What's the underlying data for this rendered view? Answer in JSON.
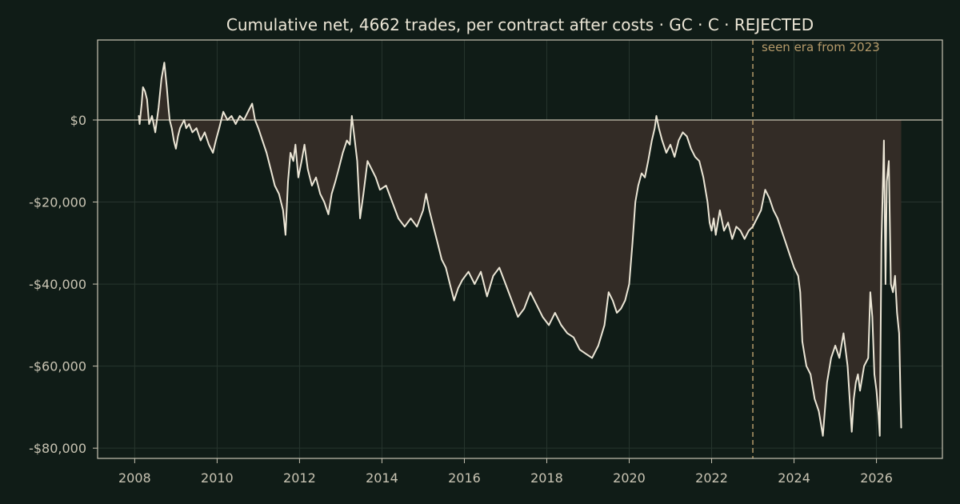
{
  "chart_data": {
    "type": "line",
    "title": "Cumulative net, 4662 trades, per contract after costs  ·  GC · C · REJECTED",
    "xlabel": "",
    "ylabel": "",
    "xlim": [
      2007.1,
      2027.6
    ],
    "ylim": [
      -82500,
      19500
    ],
    "x_ticks": [
      2008,
      2010,
      2012,
      2014,
      2016,
      2018,
      2020,
      2022,
      2024,
      2026
    ],
    "x_tick_labels": [
      "2008",
      "2010",
      "2012",
      "2014",
      "2016",
      "2018",
      "2020",
      "2022",
      "2024",
      "2026"
    ],
    "y_ticks": [
      0,
      -20000,
      -40000,
      -60000,
      -80000
    ],
    "y_tick_labels": [
      "$0",
      "-$20,000",
      "-$40,000",
      "-$60,000",
      "-$80,000"
    ],
    "grid": true,
    "zero_line": 0,
    "underwater_fill": true,
    "annotation": {
      "x": 2023.0,
      "label": "seen era from 2023"
    },
    "colors": {
      "background": "#101c17",
      "line": "#ece6d6",
      "underwater": "#332c26",
      "grid": "#27352e",
      "axis": "#c9c4b3",
      "annotation": "#b59a6a"
    },
    "series": [
      {
        "x": [
          2008.1,
          2008.12,
          2008.17,
          2008.2,
          2008.25,
          2008.3,
          2008.35,
          2008.42,
          2008.5,
          2008.58,
          2008.65,
          2008.72,
          2008.78,
          2008.82,
          2008.85,
          2008.9,
          2008.95,
          2009.0,
          2009.05,
          2009.1,
          2009.15,
          2009.2,
          2009.25,
          2009.32,
          2009.4,
          2009.5,
          2009.6,
          2009.7,
          2009.8,
          2009.9,
          2009.97,
          2010.05,
          2010.15,
          2010.25,
          2010.35,
          2010.45,
          2010.55,
          2010.65,
          2010.75,
          2010.85,
          2010.92,
          2011.0,
          2011.1,
          2011.2,
          2011.3,
          2011.4,
          2011.5,
          2011.6,
          2011.66,
          2011.72,
          2011.78,
          2011.85,
          2011.9,
          2011.97,
          2012.05,
          2012.12,
          2012.2,
          2012.3,
          2012.4,
          2012.5,
          2012.6,
          2012.7,
          2012.78,
          2012.87,
          2012.95,
          2013.05,
          2013.15,
          2013.22,
          2013.27,
          2013.33,
          2013.4,
          2013.47,
          2013.55,
          2013.65,
          2013.75,
          2013.85,
          2013.95,
          2014.1,
          2014.25,
          2014.4,
          2014.55,
          2014.7,
          2014.85,
          2015.0,
          2015.07,
          2015.15,
          2015.25,
          2015.35,
          2015.45,
          2015.55,
          2015.65,
          2015.75,
          2015.85,
          2015.95,
          2016.1,
          2016.25,
          2016.4,
          2016.55,
          2016.7,
          2016.85,
          2017.0,
          2017.15,
          2017.3,
          2017.45,
          2017.6,
          2017.75,
          2017.9,
          2018.05,
          2018.2,
          2018.35,
          2018.5,
          2018.65,
          2018.8,
          2018.95,
          2019.1,
          2019.25,
          2019.4,
          2019.5,
          2019.6,
          2019.7,
          2019.8,
          2019.9,
          2020.0,
          2020.08,
          2020.15,
          2020.22,
          2020.3,
          2020.38,
          2020.46,
          2020.55,
          2020.62,
          2020.66,
          2020.72,
          2020.8,
          2020.9,
          2021.0,
          2021.1,
          2021.2,
          2021.3,
          2021.4,
          2021.5,
          2021.6,
          2021.7,
          2021.8,
          2021.9,
          2021.95,
          2022.0,
          2022.05,
          2022.1,
          2022.2,
          2022.3,
          2022.4,
          2022.5,
          2022.6,
          2022.7,
          2022.8,
          2022.9,
          2023.0,
          2023.1,
          2023.2,
          2023.3,
          2023.4,
          2023.5,
          2023.6,
          2023.7,
          2023.8,
          2023.9,
          2024.0,
          2024.1,
          2024.15,
          2024.2,
          2024.25,
          2024.3,
          2024.4,
          2024.5,
          2024.6,
          2024.7,
          2024.8,
          2024.9,
          2025.0,
          2025.1,
          2025.2,
          2025.3,
          2025.35,
          2025.4,
          2025.45,
          2025.5,
          2025.55,
          2025.6,
          2025.7,
          2025.8,
          2025.85,
          2025.9,
          2025.95,
          2026.0,
          2026.05,
          2026.08,
          2026.12,
          2026.15,
          2026.18,
          2026.22,
          2026.25,
          2026.3,
          2026.35,
          2026.4,
          2026.45,
          2026.5,
          2026.55,
          2026.6
        ],
        "y": [
          1000,
          -1000,
          4000,
          8000,
          7000,
          5000,
          -1000,
          1000,
          -3000,
          3000,
          10000,
          14000,
          8000,
          3000,
          0,
          -2000,
          -5000,
          -7000,
          -4000,
          -2000,
          -1000,
          0,
          -2000,
          -1000,
          -3000,
          -2000,
          -5000,
          -3000,
          -6000,
          -8000,
          -5000,
          -2000,
          2000,
          0,
          1000,
          -1000,
          1000,
          0,
          2000,
          4000,
          0,
          -2000,
          -5000,
          -8000,
          -12000,
          -16000,
          -18000,
          -22000,
          -28000,
          -15000,
          -8000,
          -10000,
          -6000,
          -14000,
          -10000,
          -6000,
          -12000,
          -16000,
          -14000,
          -18000,
          -20000,
          -23000,
          -18000,
          -15000,
          -12000,
          -8000,
          -5000,
          -6000,
          1000,
          -4000,
          -10000,
          -24000,
          -18000,
          -10000,
          -12000,
          -14000,
          -17000,
          -16000,
          -20000,
          -24000,
          -26000,
          -24000,
          -26000,
          -22000,
          -18000,
          -22000,
          -26000,
          -30000,
          -34000,
          -36000,
          -40000,
          -44000,
          -41000,
          -39000,
          -37000,
          -40000,
          -37000,
          -43000,
          -38000,
          -36000,
          -40000,
          -44000,
          -48000,
          -46000,
          -42000,
          -45000,
          -48000,
          -50000,
          -47000,
          -50000,
          -52000,
          -53000,
          -56000,
          -57000,
          -58000,
          -55000,
          -50000,
          -42000,
          -44000,
          -47000,
          -46000,
          -44000,
          -40000,
          -30000,
          -20000,
          -16000,
          -13000,
          -14000,
          -10000,
          -5000,
          -2000,
          1000,
          -2000,
          -5000,
          -8000,
          -6000,
          -9000,
          -5000,
          -3000,
          -4000,
          -7000,
          -9000,
          -10000,
          -14000,
          -20000,
          -25000,
          -27000,
          -24000,
          -28000,
          -22000,
          -27000,
          -25000,
          -29000,
          -26000,
          -27000,
          -29000,
          -27000,
          -26000,
          -24000,
          -22000,
          -17000,
          -19000,
          -22000,
          -24000,
          -27000,
          -30000,
          -33000,
          -36000,
          -38000,
          -42000,
          -54000,
          -57000,
          -60000,
          -62000,
          -68000,
          -71000,
          -77000,
          -64000,
          -58000,
          -55000,
          -58000,
          -52000,
          -60000,
          -68000,
          -76000,
          -68000,
          -64000,
          -62000,
          -66000,
          -60000,
          -58000,
          -42000,
          -48000,
          -62000,
          -66000,
          -72000,
          -77000,
          -30000,
          -18000,
          -5000,
          -40000,
          -15000,
          -10000,
          -40000,
          -42000,
          -38000,
          -47000,
          -52000,
          -75000
        ]
      }
    ]
  }
}
